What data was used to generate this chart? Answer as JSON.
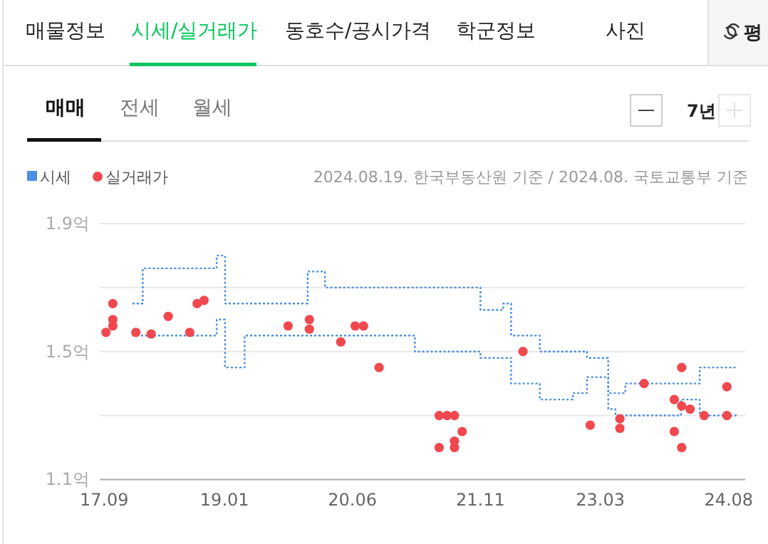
{
  "chart_data": {
    "type": "step",
    "series": [
      {
        "name": "시세",
        "color": "#4a90e2",
        "line_style": "dotted",
        "x": [
          "2017-12-24",
          "2018-02-04",
          "2018-11-30",
          "2019-01-03",
          "2019-03-23",
          "2019-12-03",
          "2020-02-11",
          "2021-11-01",
          "2022-02-01",
          "2022-03-05",
          "2022-06-29",
          "2023-01-06",
          "2023-04-02",
          "2023-06-10",
          "2024-04-06",
          "2024-09-03"
        ],
        "values": [
          1.65,
          1.76,
          1.8,
          1.65,
          1.65,
          1.75,
          1.7,
          1.63,
          1.65,
          1.55,
          1.5,
          1.48,
          1.37,
          1.4,
          1.45,
          1.45
        ]
      },
      {
        "color": "#4a90e2",
        "line_style": "dotted",
        "x": [
          "2017-12-24",
          "2018-11-30",
          "2019-01-03",
          "2019-03-23",
          "2021-02-09",
          "2021-11-01",
          "2022-03-05",
          "2022-06-29",
          "2022-11-10",
          "2023-01-06",
          "2023-04-02",
          "2023-05-01",
          "2024-01-21",
          "2024-04-06",
          "2024-09-03"
        ],
        "values": [
          1.55,
          1.6,
          1.45,
          1.55,
          1.5,
          1.48,
          1.4,
          1.35,
          1.37,
          1.42,
          1.32,
          1.3,
          1.35,
          1.3,
          1.3
        ]
      },
      {
        "name": "실거래가",
        "type": "scatter",
        "color": "#f0484f",
        "marker": "circle",
        "x": [
          "2017-09-08",
          "2017-10-06",
          "2017-10-06",
          "2017-10-06",
          "2018-01-07",
          "2018-03-10",
          "2018-05-18",
          "2018-08-13",
          "2018-09-12",
          "2018-10-10",
          "2019-09-15",
          "2019-12-10",
          "2019-12-10",
          "2020-04-15",
          "2020-06-12",
          "2020-07-16",
          "2020-09-17",
          "2021-05-18",
          "2021-05-18",
          "2021-06-19",
          "2021-07-19",
          "2021-07-19",
          "2021-07-19",
          "2021-08-19",
          "2022-04-22",
          "2023-01-19",
          "2023-05-19",
          "2023-05-19",
          "2023-08-25",
          "2023-12-25",
          "2023-12-25",
          "2024-01-24",
          "2024-01-24",
          "2024-01-24",
          "2024-02-27",
          "2024-04-24",
          "2024-07-25",
          "2024-07-25"
        ],
        "values": [
          1.56,
          1.65,
          1.6,
          1.58,
          1.56,
          1.555,
          1.61,
          1.56,
          1.65,
          1.66,
          1.58,
          1.6,
          1.57,
          1.53,
          1.58,
          1.58,
          1.45,
          1.3,
          1.2,
          1.3,
          1.3,
          1.22,
          1.2,
          1.25,
          1.5,
          1.27,
          1.29,
          1.26,
          1.4,
          1.35,
          1.25,
          1.45,
          1.33,
          1.2,
          1.32,
          1.3,
          1.39,
          1.3
        ]
      }
    ],
    "xlim": [
      "2017-08-14",
      "2024-10-07"
    ],
    "xticks": [
      {
        "value": "2017-09",
        "label": "17.09"
      },
      {
        "value": "2019-01",
        "label": "19.01"
      },
      {
        "value": "2020-06",
        "label": "20.06"
      },
      {
        "value": "2021-11",
        "label": "21.11"
      },
      {
        "value": "2023-03",
        "label": "23.03"
      },
      {
        "value": "2024-08",
        "label": "24.08"
      }
    ],
    "ylim": [
      1.1,
      1.9
    ],
    "yticks": [
      {
        "value": 1.1,
        "label": "1.1억"
      },
      {
        "value": 1.3,
        "label": null
      },
      {
        "value": 1.5,
        "label": "1.5억"
      },
      {
        "value": 1.7,
        "label": null
      },
      {
        "value": 1.9,
        "label": "1.9억"
      }
    ],
    "grid": "y",
    "legend": "top left",
    "annotations": [
      "매물정보",
      "시세/실거래가",
      "동호수/공시가격",
      "학군정보",
      "사진",
      "평",
      "매매",
      "전세",
      "월세",
      "7년",
      "2024.08.19. 한국부동산원 기준 / 2024.08. 국토교통부 기준"
    ]
  }
}
